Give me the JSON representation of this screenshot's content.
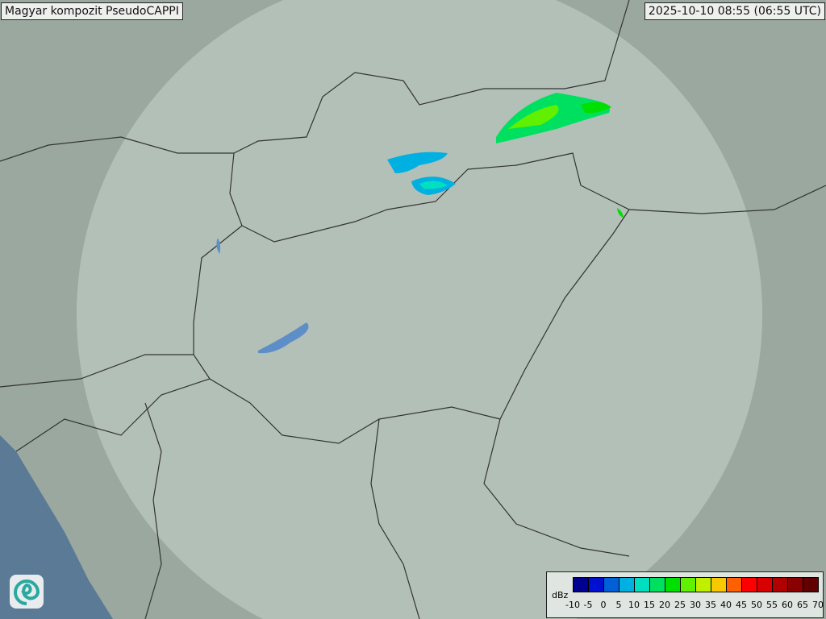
{
  "title": "Magyar kompozit  PseudoCAPPI",
  "timestamp": "2025-10-10 08:55 (06:55 UTC)",
  "logo": {
    "icon": "swirl-logo-icon"
  },
  "legend": {
    "unit": "dBz",
    "ticks": [
      "-10",
      "-5",
      "0",
      "5",
      "10",
      "15",
      "20",
      "25",
      "30",
      "35",
      "40",
      "45",
      "50",
      "55",
      "60",
      "65",
      "70"
    ],
    "colors": [
      "#000090",
      "#0010d0",
      "#0060d8",
      "#00b0e0",
      "#00e0c0",
      "#00e060",
      "#00e000",
      "#60f000",
      "#c0f000",
      "#f8c800",
      "#ff6000",
      "#ff0000",
      "#d80000",
      "#b00000",
      "#880000",
      "#600000"
    ]
  },
  "colors": {
    "map_bg": "#9aa89f",
    "coverage": "#c8d4cc",
    "sea": "#5a7a96",
    "border": "#333333",
    "water": "#5e8ec8"
  }
}
